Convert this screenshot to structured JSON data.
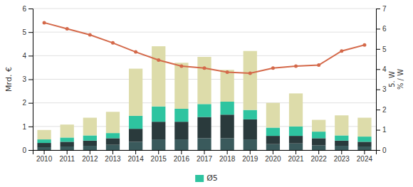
{
  "chart_data": {
    "type": "bar",
    "stacked": true,
    "grid": true,
    "legend": "bottom",
    "categories": [
      "2010",
      "2011",
      "2012",
      "2013",
      "2014",
      "2015",
      "2016",
      "2017",
      "2018",
      "2019",
      "2020",
      "2021",
      "2022",
      "2023",
      "2024"
    ],
    "ylabel": "Mrd. €",
    "y2label": "5. W\n% / W",
    "ylim": [
      0,
      6
    ],
    "yticks": [
      0,
      1,
      2,
      3,
      4,
      5,
      6
    ],
    "y2lim": [
      0,
      7
    ],
    "y2ticks": [
      0,
      1,
      2,
      3,
      4,
      5,
      6,
      7
    ],
    "series": [
      {
        "color": "#3a5a5c",
        "values": [
          0.12,
          0.15,
          0.18,
          0.22,
          0.35,
          0.45,
          0.45,
          0.5,
          0.5,
          0.45,
          0.25,
          0.28,
          0.2,
          0.18,
          0.15
        ]
      },
      {
        "color": "#2a3a3c",
        "values": [
          0.18,
          0.2,
          0.22,
          0.28,
          0.55,
          0.75,
          0.75,
          0.9,
          1.0,
          0.85,
          0.35,
          0.32,
          0.3,
          0.22,
          0.2
        ]
      },
      {
        "name": "Ø5",
        "color": "#2ec4a0",
        "values": [
          0.15,
          0.18,
          0.22,
          0.22,
          0.55,
          0.65,
          0.55,
          0.55,
          0.55,
          0.4,
          0.35,
          0.4,
          0.28,
          0.22,
          0.22
        ]
      },
      {
        "color": "#dddcaa",
        "values": [
          0.4,
          0.55,
          0.75,
          0.9,
          2.0,
          2.55,
          1.95,
          2.0,
          1.35,
          2.5,
          1.05,
          1.4,
          0.5,
          0.85,
          0.8
        ]
      },
      {
        "type": "line",
        "axis": "y2",
        "color": "#d4694a",
        "marker": "circle",
        "values": [
          6.3,
          6.0,
          5.7,
          5.3,
          4.85,
          4.45,
          4.15,
          4.05,
          3.85,
          3.8,
          4.05,
          4.15,
          4.2,
          4.9,
          5.2
        ]
      }
    ]
  }
}
